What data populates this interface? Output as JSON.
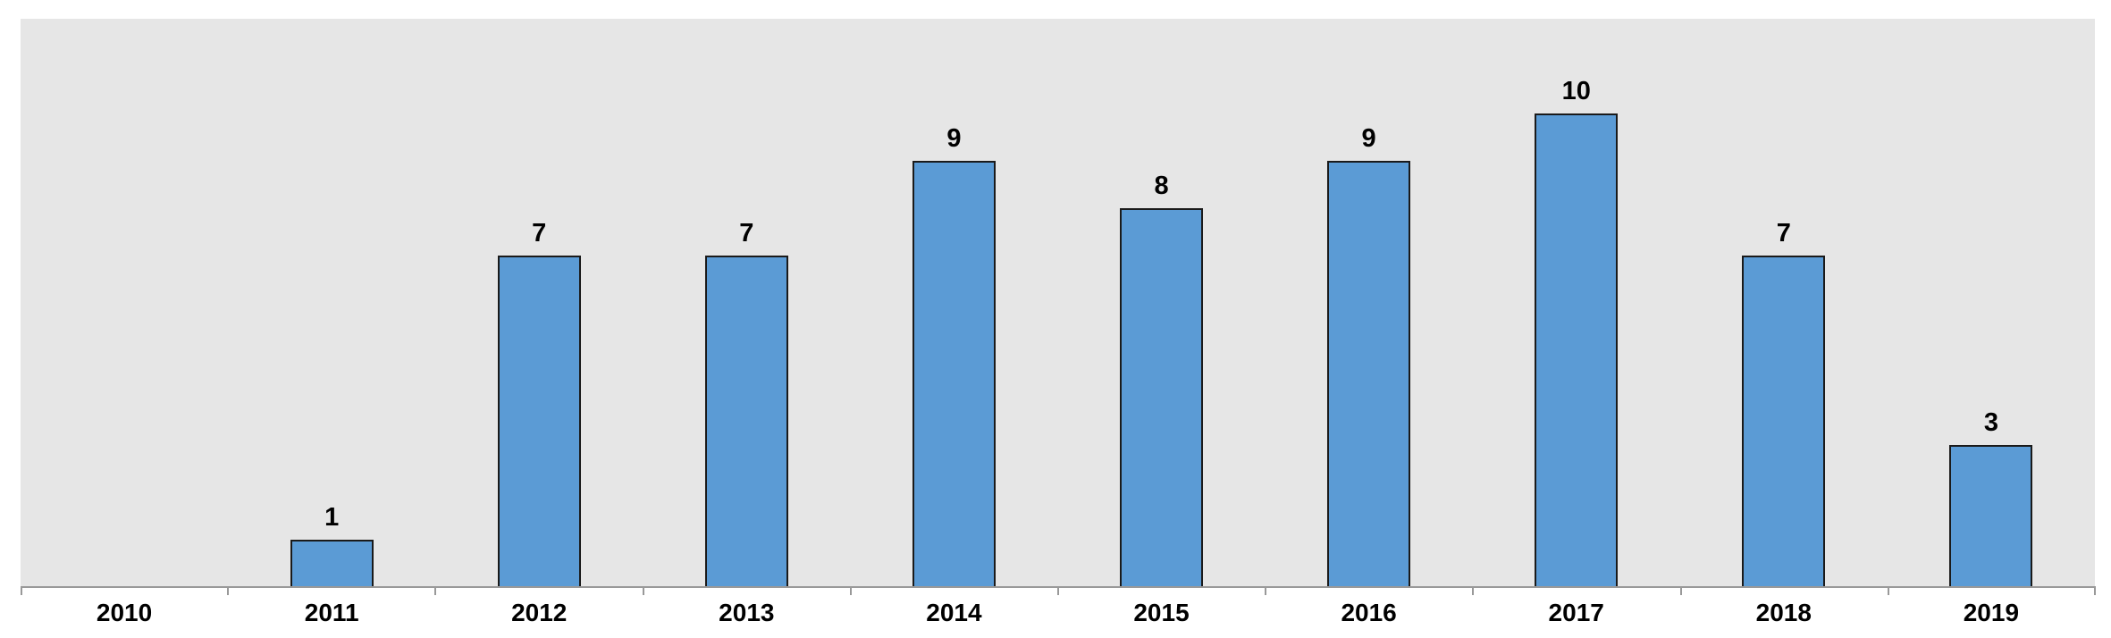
{
  "chart_data": {
    "type": "bar",
    "categories": [
      "2010",
      "2011",
      "2012",
      "2013",
      "2014",
      "2015",
      "2016",
      "2017",
      "2018",
      "2019"
    ],
    "values": [
      0,
      1,
      7,
      7,
      9,
      8,
      9,
      10,
      7,
      3
    ],
    "data_labels": [
      "",
      "1",
      "7",
      "7",
      "9",
      "8",
      "9",
      "10",
      "7",
      "3"
    ],
    "title": "",
    "xlabel": "",
    "ylabel": "",
    "ylim": [
      0,
      12
    ],
    "grid": false,
    "legend": false,
    "colors": {
      "bar_fill": "#5b9bd5",
      "bar_border": "#1a1a1a",
      "plot_background": "#e6e6e6",
      "page_background": "#ffffff",
      "axis_line": "#999999",
      "tick": "#999999",
      "label_text": "#000000"
    }
  }
}
